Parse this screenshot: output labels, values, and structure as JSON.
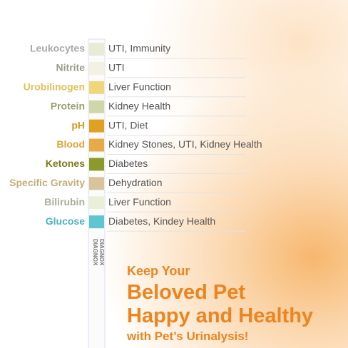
{
  "tests": [
    {
      "name": "Leukocytes",
      "use": "UTI, Immunity",
      "label_color": "#a8a8a8",
      "pad_color": "#e6ecd6"
    },
    {
      "name": "Nitrite",
      "use": "UTI",
      "label_color": "#9c9c8c",
      "pad_color": "#f3f1e4"
    },
    {
      "name": "Urobilinogen",
      "use": "Liver Function",
      "label_color": "#e4bf58",
      "pad_color": "#f0d67a"
    },
    {
      "name": "Protein",
      "use": "Kidney Health",
      "label_color": "#9a9e74",
      "pad_color": "#cfd6a8"
    },
    {
      "name": "pH",
      "use": "UTI, Diet",
      "label_color": "#d69816",
      "pad_color": "#e0a021"
    },
    {
      "name": "Blood",
      "use": "Kidney Stones, UTI, Kidney Health",
      "label_color": "#e0a23a",
      "pad_color": "#e8aa48"
    },
    {
      "name": "Ketones",
      "use": "Diabetes",
      "label_color": "#7e791e",
      "pad_color": "#8c9a2a"
    },
    {
      "name": "Specific Gravity",
      "use": "Dehydration",
      "label_color": "#c6ad78",
      "pad_color": "#d9c39a"
    },
    {
      "name": "Bilirubin",
      "use": "Liver Function",
      "label_color": "#a8af9a",
      "pad_color": "#eaefda"
    },
    {
      "name": "Glucose",
      "use": "Diabetes, Kindey Health",
      "label_color": "#4fb1be",
      "pad_color": "#5fc6d0"
    }
  ],
  "strip_text": "DIAGNOX",
  "headline": {
    "line1": "Keep Your",
    "line2": "Beloved Pet",
    "line3": "Happy and Healthy",
    "line4": "with Pet’s Urinalysis!"
  }
}
